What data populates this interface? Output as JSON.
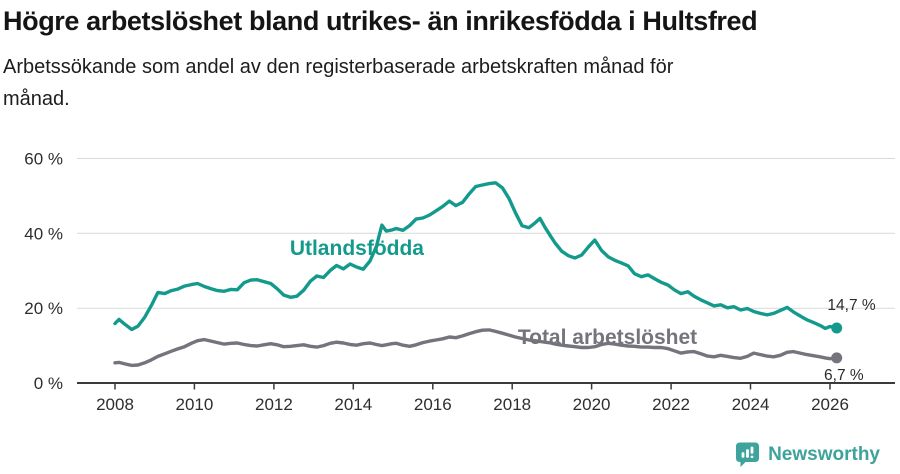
{
  "header": {
    "title": "Högre arbetslöshet bland utrikes- än inrikesfödda i Hultsfred",
    "subtitle": "Arbetssökande som andel av den registerbaserade arbetskraften månad för månad."
  },
  "colors": {
    "teal": "#149a8d",
    "gray": "#75737c",
    "grid": "#d9d9d9",
    "axis": "#3a3a3a",
    "title_text": "#151515",
    "tick_text": "#2e2e2e",
    "end_label_text": "#2b2b2b",
    "brand": "#3da39b"
  },
  "chart_data": {
    "type": "line",
    "title": "Högre arbetslöshet bland utrikes- än inrikesfödda i Hultsfred",
    "subtitle": "Arbetssökande som andel av den registerbaserade arbetskraften månad för månad.",
    "xlabel": "",
    "ylabel": "",
    "grid": "horizontal",
    "legend_position": "inline",
    "x_axis": {
      "ticks": [
        2008,
        2010,
        2012,
        2014,
        2016,
        2018,
        2020,
        2022,
        2024,
        2026
      ],
      "tick_labels": [
        "2008",
        "2010",
        "2012",
        "2014",
        "2016",
        "2018",
        "2020",
        "2022",
        "2024",
        "2026"
      ]
    },
    "y_axis": {
      "ticks": [
        0,
        20,
        40,
        60
      ],
      "tick_labels": [
        "0 %",
        "20 %",
        "40 %",
        "60 %"
      ],
      "ylim": [
        0,
        62
      ],
      "unit": "%"
    },
    "x": [
      2008.0,
      2008.1,
      2008.25,
      2008.42,
      2008.58,
      2008.75,
      2008.92,
      2009.08,
      2009.25,
      2009.42,
      2009.58,
      2009.75,
      2009.92,
      2010.08,
      2010.25,
      2010.42,
      2010.58,
      2010.75,
      2010.92,
      2011.08,
      2011.25,
      2011.42,
      2011.58,
      2011.75,
      2011.92,
      2012.08,
      2012.25,
      2012.42,
      2012.58,
      2012.75,
      2012.92,
      2013.08,
      2013.25,
      2013.42,
      2013.58,
      2013.75,
      2013.92,
      2014.08,
      2014.25,
      2014.42,
      2014.58,
      2014.72,
      2014.83,
      2014.97,
      2015.08,
      2015.25,
      2015.42,
      2015.58,
      2015.75,
      2015.92,
      2016.08,
      2016.25,
      2016.42,
      2016.58,
      2016.75,
      2016.92,
      2017.08,
      2017.25,
      2017.42,
      2017.58,
      2017.75,
      2017.92,
      2018.08,
      2018.25,
      2018.42,
      2018.58,
      2018.7,
      2018.83,
      2018.97,
      2019.08,
      2019.25,
      2019.42,
      2019.58,
      2019.75,
      2019.92,
      2020.08,
      2020.25,
      2020.42,
      2020.58,
      2020.75,
      2020.92,
      2021.08,
      2021.25,
      2021.42,
      2021.58,
      2021.75,
      2021.92,
      2022.08,
      2022.25,
      2022.42,
      2022.58,
      2022.75,
      2022.92,
      2023.08,
      2023.25,
      2023.42,
      2023.58,
      2023.75,
      2023.92,
      2024.08,
      2024.25,
      2024.42,
      2024.58,
      2024.75,
      2024.92,
      2025.08,
      2025.25,
      2025.42,
      2025.58,
      2025.75,
      2025.88,
      2026.0,
      2026.17
    ],
    "series": [
      {
        "name": "Utlandsfödda",
        "color": "#149a8d",
        "end_label": "14,7 %",
        "end_value": 14.7,
        "label_pos": {
          "x": 2014.09,
          "y": 34.2
        },
        "values": [
          15.9,
          17.0,
          15.7,
          14.3,
          15.2,
          17.6,
          20.8,
          24.2,
          23.9,
          24.7,
          25.1,
          25.9,
          26.3,
          26.6,
          25.8,
          25.2,
          24.7,
          24.5,
          25.0,
          24.9,
          26.8,
          27.5,
          27.6,
          27.1,
          26.6,
          25.2,
          23.5,
          22.9,
          23.2,
          24.8,
          27.2,
          28.6,
          28.2,
          30.1,
          31.4,
          30.5,
          31.8,
          31.0,
          30.4,
          32.6,
          36.5,
          42.2,
          40.6,
          40.9,
          41.3,
          40.8,
          42.1,
          43.8,
          44.1,
          44.9,
          46.0,
          47.2,
          48.6,
          47.4,
          48.3,
          50.6,
          52.5,
          52.9,
          53.3,
          53.5,
          52.2,
          49.3,
          45.5,
          42.0,
          41.5,
          42.8,
          44.0,
          41.5,
          39.2,
          37.4,
          35.2,
          34.0,
          33.4,
          34.2,
          36.4,
          38.2,
          35.4,
          33.7,
          32.8,
          32.1,
          31.3,
          29.2,
          28.4,
          28.9,
          27.9,
          26.9,
          26.2,
          24.9,
          23.9,
          24.4,
          23.2,
          22.2,
          21.4,
          20.6,
          20.9,
          20.1,
          20.4,
          19.5,
          19.9,
          19.1,
          18.6,
          18.2,
          18.6,
          19.4,
          20.2,
          19.0,
          17.9,
          16.9,
          16.2,
          15.4,
          14.6,
          15.1,
          14.7
        ]
      },
      {
        "name": "Total arbetslöshet",
        "color": "#75737c",
        "end_label": "6,7 %",
        "end_value": 6.7,
        "label_pos": {
          "x": 2020.4,
          "y": 10.4
        },
        "values": [
          5.4,
          5.5,
          5.1,
          4.7,
          4.8,
          5.4,
          6.2,
          7.1,
          7.8,
          8.5,
          9.1,
          9.7,
          10.6,
          11.3,
          11.6,
          11.2,
          10.8,
          10.4,
          10.6,
          10.7,
          10.3,
          10.0,
          9.9,
          10.2,
          10.5,
          10.2,
          9.7,
          9.8,
          10.0,
          10.2,
          9.8,
          9.6,
          10.0,
          10.6,
          10.9,
          10.7,
          10.3,
          10.1,
          10.5,
          10.7,
          10.3,
          10.0,
          10.2,
          10.5,
          10.6,
          10.1,
          9.8,
          10.2,
          10.8,
          11.2,
          11.5,
          11.8,
          12.3,
          12.1,
          12.6,
          13.2,
          13.7,
          14.1,
          14.2,
          13.8,
          13.3,
          12.8,
          12.3,
          11.9,
          11.5,
          11.3,
          11.1,
          10.9,
          10.7,
          10.4,
          10.1,
          9.9,
          9.7,
          9.5,
          9.5,
          9.7,
          10.3,
          10.6,
          10.4,
          10.1,
          9.9,
          9.8,
          9.6,
          9.6,
          9.5,
          9.5,
          9.2,
          8.6,
          8.0,
          8.3,
          8.4,
          7.8,
          7.2,
          7.0,
          7.4,
          7.1,
          6.8,
          6.6,
          7.1,
          8.0,
          7.6,
          7.2,
          7.0,
          7.4,
          8.2,
          8.4,
          8.0,
          7.6,
          7.3,
          7.0,
          6.7,
          6.5,
          6.7
        ]
      }
    ]
  },
  "footer": {
    "brand": "Newsworthy"
  }
}
